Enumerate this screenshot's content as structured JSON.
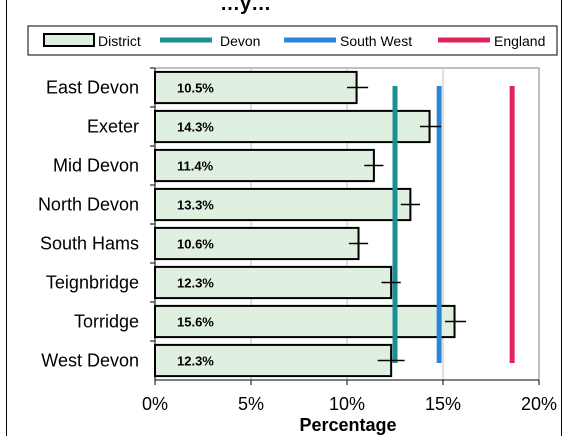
{
  "chart_data": {
    "type": "bar",
    "orientation": "horizontal",
    "title": "…y…",
    "xlabel": "Percentage",
    "ylabel": "",
    "xlim": [
      0,
      20
    ],
    "x_ticks": [
      "0%",
      "5%",
      "10%",
      "15%",
      "20%"
    ],
    "x_tick_values": [
      0,
      5,
      10,
      15,
      20
    ],
    "grid": "vertical",
    "legend_position": "top",
    "categories": [
      "East Devon",
      "Exeter",
      "Mid Devon",
      "North Devon",
      "South Hams",
      "Teignbridge",
      "Torridge",
      "West Devon"
    ],
    "series": [
      {
        "name": "District",
        "values": [
          10.5,
          14.3,
          11.4,
          13.3,
          10.6,
          12.3,
          15.6,
          12.3
        ],
        "labels": [
          "10.5%",
          "14.3%",
          "11.4%",
          "13.3%",
          "10.6%",
          "12.3%",
          "15.6%",
          "12.3%"
        ],
        "error_low": [
          10.0,
          13.8,
          10.9,
          12.8,
          10.1,
          11.8,
          15.1,
          11.6
        ],
        "error_high": [
          11.1,
          14.9,
          11.9,
          13.8,
          11.1,
          12.8,
          16.2,
          13.0
        ],
        "color": "#e0f0e0"
      }
    ],
    "reference_lines": [
      {
        "name": "Devon",
        "value": 12.5,
        "color": "#1a9090"
      },
      {
        "name": "South West",
        "value": 14.8,
        "color": "#2a86d8"
      },
      {
        "name": "England",
        "value": 18.6,
        "color": "#e0245a"
      }
    ]
  }
}
